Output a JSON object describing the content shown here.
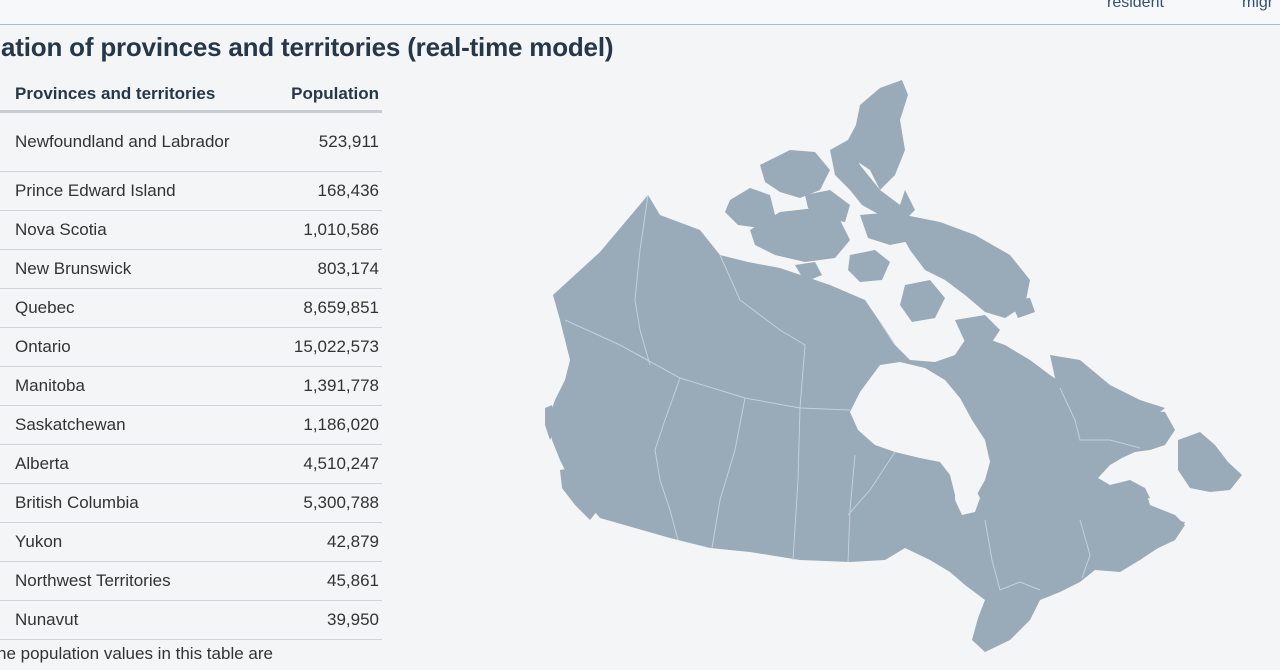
{
  "topbar": {
    "tab_fragments": [
      "resident",
      "migr"
    ]
  },
  "page": {
    "title": "lation of provinces and territories (real-time model)",
    "footnote": "he population values in this table are"
  },
  "table": {
    "headers": {
      "region": "Provinces and territories",
      "population": "Population"
    },
    "rows": [
      {
        "name": "Newfoundland and Labrador",
        "population": "523,911"
      },
      {
        "name": "Prince Edward Island",
        "population": "168,436"
      },
      {
        "name": "Nova Scotia",
        "population": "1,010,586"
      },
      {
        "name": "New Brunswick",
        "population": "803,174"
      },
      {
        "name": "Quebec",
        "population": "8,659,851"
      },
      {
        "name": "Ontario",
        "population": "15,022,573"
      },
      {
        "name": "Manitoba",
        "population": "1,391,778"
      },
      {
        "name": "Saskatchewan",
        "population": "1,186,020"
      },
      {
        "name": "Alberta",
        "population": "4,510,247"
      },
      {
        "name": "British Columbia",
        "population": "5,300,788"
      },
      {
        "name": "Yukon",
        "population": "42,879"
      },
      {
        "name": "Northwest Territories",
        "population": "45,861"
      },
      {
        "name": "Nunavut",
        "population": "39,950"
      }
    ]
  },
  "colors": {
    "map_fill": "#99aab8",
    "heading": "#26374a",
    "background": "#f3f5f7"
  }
}
